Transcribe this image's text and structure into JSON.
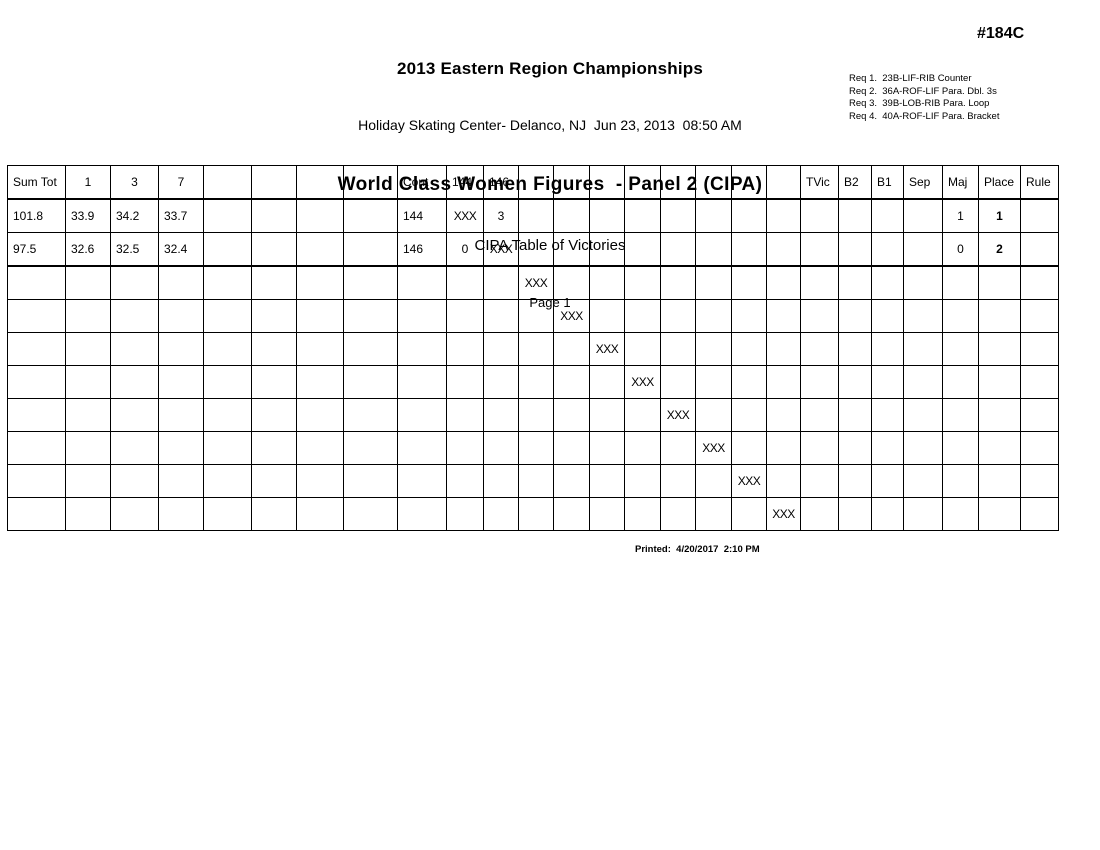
{
  "header": {
    "event_title": "2013 Eastern Region Championships",
    "venue_line": "Holiday Skating Center- Delanco, NJ  Jun 23, 2013  08:50 AM",
    "panel_title": "World Class Women Figures  - Panel 2 (CIPA)",
    "subtitle": "CIPA Table of Victories",
    "page_label": "Page 1",
    "event_number": "#184C",
    "requirements": [
      "Req 1.  23B-LIF-RIB Counter",
      "Req 2.  36A-ROF-LIF Para. Dbl. 3s",
      "Req 3.  39B-LOB-RIB Para. Loop",
      "Req 4.  40A-ROF-LIF Para. Bracket"
    ]
  },
  "table": {
    "columns": [
      "Sum Tot",
      "1",
      "3",
      "7",
      "",
      "",
      "",
      "",
      "Cont",
      "144",
      "146",
      "",
      "",
      "",
      "",
      "",
      "",
      "",
      "",
      "TVic",
      "B2",
      "B1",
      "Sep",
      "Maj",
      "Place",
      "Rule"
    ],
    "rows": [
      [
        "101.8",
        "33.9",
        "34.2",
        "33.7",
        "",
        "",
        "",
        "",
        "144",
        "XXX",
        "3",
        "",
        "",
        "",
        "",
        "",
        "",
        "",
        "",
        "",
        "",
        "",
        "",
        "1",
        "1",
        ""
      ],
      [
        "97.5",
        "32.6",
        "32.5",
        "32.4",
        "",
        "",
        "",
        "",
        "146",
        "0",
        "XXX",
        "",
        "",
        "",
        "",
        "",
        "",
        "",
        "",
        "",
        "",
        "",
        "",
        "0",
        "2",
        ""
      ],
      [
        "",
        "",
        "",
        "",
        "",
        "",
        "",
        "",
        "",
        "",
        "",
        "XXX",
        "",
        "",
        "",
        "",
        "",
        "",
        "",
        "",
        "",
        "",
        "",
        "",
        "",
        ""
      ],
      [
        "",
        "",
        "",
        "",
        "",
        "",
        "",
        "",
        "",
        "",
        "",
        "",
        "XXX",
        "",
        "",
        "",
        "",
        "",
        "",
        "",
        "",
        "",
        "",
        "",
        "",
        ""
      ],
      [
        "",
        "",
        "",
        "",
        "",
        "",
        "",
        "",
        "",
        "",
        "",
        "",
        "",
        "XXX",
        "",
        "",
        "",
        "",
        "",
        "",
        "",
        "",
        "",
        "",
        "",
        ""
      ],
      [
        "",
        "",
        "",
        "",
        "",
        "",
        "",
        "",
        "",
        "",
        "",
        "",
        "",
        "",
        "XXX",
        "",
        "",
        "",
        "",
        "",
        "",
        "",
        "",
        "",
        "",
        ""
      ],
      [
        "",
        "",
        "",
        "",
        "",
        "",
        "",
        "",
        "",
        "",
        "",
        "",
        "",
        "",
        "",
        "XXX",
        "",
        "",
        "",
        "",
        "",
        "",
        "",
        "",
        "",
        ""
      ],
      [
        "",
        "",
        "",
        "",
        "",
        "",
        "",
        "",
        "",
        "",
        "",
        "",
        "",
        "",
        "",
        "",
        "XXX",
        "",
        "",
        "",
        "",
        "",
        "",
        "",
        "",
        ""
      ],
      [
        "",
        "",
        "",
        "",
        "",
        "",
        "",
        "",
        "",
        "",
        "",
        "",
        "",
        "",
        "",
        "",
        "",
        "XXX",
        "",
        "",
        "",
        "",
        "",
        "",
        "",
        ""
      ],
      [
        "",
        "",
        "",
        "",
        "",
        "",
        "",
        "",
        "",
        "",
        "",
        "",
        "",
        "",
        "",
        "",
        "",
        "",
        "XXX",
        "",
        "",
        "",
        "",
        "",
        "",
        ""
      ]
    ]
  },
  "footer": {
    "printed_label": "Printed:  4/20/2017  2:10 PM"
  }
}
